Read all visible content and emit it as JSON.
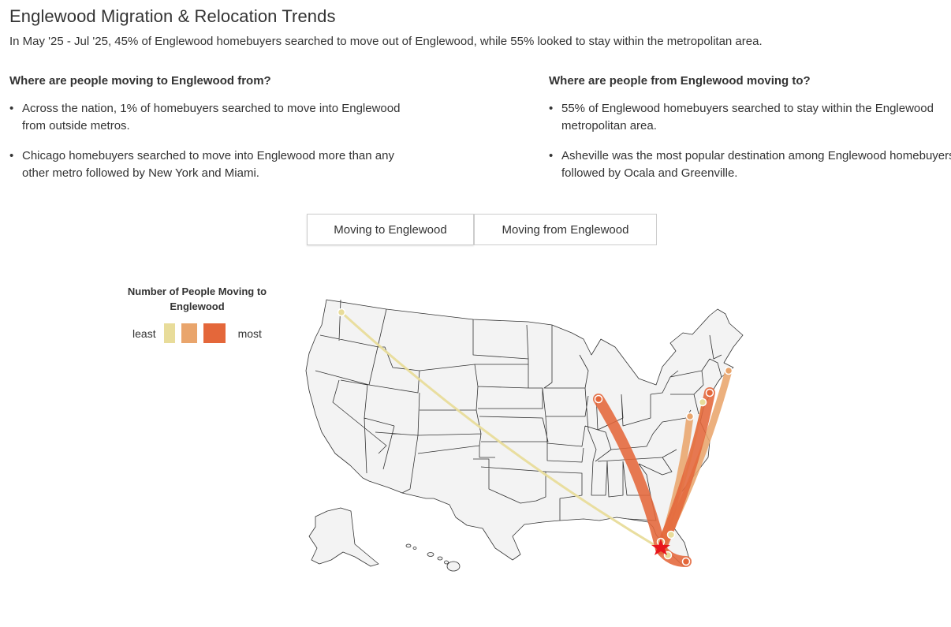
{
  "header": {
    "title": "Englewood Migration & Relocation Trends",
    "subtitle": "In May '25 - Jul '25, 45% of Englewood homebuyers searched to move out of Englewood, while 55% looked to stay within the metropolitan area."
  },
  "left_column": {
    "heading": "Where are people moving to Englewood from?",
    "bullets": [
      "Across the nation, 1% of homebuyers searched to move into Englewood from outside metros.",
      "Chicago homebuyers searched to move into Englewood more than any other metro followed by New York and Miami."
    ]
  },
  "right_column": {
    "heading": "Where are people from Englewood moving to?",
    "bullets": [
      "55% of Englewood homebuyers searched to stay within the Englewood metropolitan area.",
      "Asheville was the most popular destination among Englewood homebuyers followed by Ocala and Greenville."
    ]
  },
  "toggle": {
    "to_label": "Moving to Englewood",
    "from_label": "Moving from Englewood",
    "active": "to"
  },
  "legend": {
    "title": "Number of People Moving to Englewood",
    "least_label": "least",
    "most_label": "most",
    "colors": [
      "#e8dc9a",
      "#e9a56c",
      "#e4673a"
    ]
  },
  "map": {
    "destination_marker": "red-star-icon",
    "colors": {
      "land": "#f3f3f3",
      "borders": "#333333",
      "destination": "#e8151d"
    },
    "flows": [
      {
        "origin": "Seattle metro",
        "level": "least"
      },
      {
        "origin": "Chicago metro",
        "level": "most"
      },
      {
        "origin": "Boston metro",
        "level": "mid"
      },
      {
        "origin": "New York metro",
        "level": "most"
      },
      {
        "origin": "Philadelphia metro",
        "level": "least"
      },
      {
        "origin": "Washington metro",
        "level": "mid"
      },
      {
        "origin": "Orlando metro",
        "level": "least"
      },
      {
        "origin": "Tampa metro",
        "level": "mid"
      },
      {
        "origin": "Fort Myers metro",
        "level": "least"
      },
      {
        "origin": "Miami metro",
        "level": "most"
      }
    ]
  }
}
